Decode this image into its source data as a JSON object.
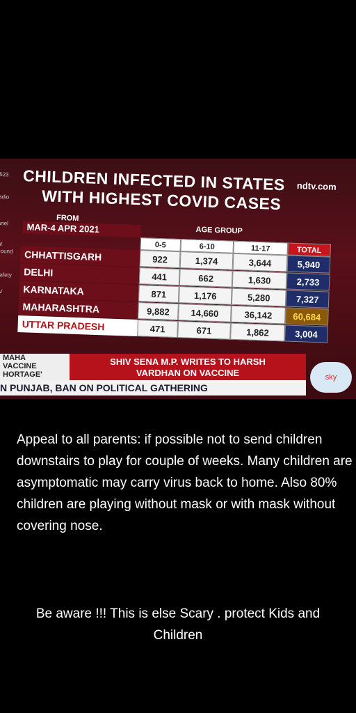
{
  "tv": {
    "channel": "ndtv.com",
    "side_labels": [
      "523",
      "adio",
      "anel",
      "W",
      "Sound",
      "l",
      "Safety",
      "TV"
    ],
    "title": [
      "CHILDREN INFECTED IN STATES",
      "WITH HIGHEST COVID CASES"
    ],
    "from_label": "FROM",
    "period": "MAR-4 APR 2021",
    "age_group_label": "AGE GROUP",
    "table": {
      "headers": [
        "0-5",
        "6-10",
        "11-17",
        "TOTAL"
      ],
      "rows": [
        [
          "CHHATTISGARH",
          "922",
          "1,374",
          "3,644",
          "5,940"
        ],
        [
          "DELHI",
          "441",
          "662",
          "1,630",
          "2,733"
        ],
        [
          "KARNATAKA",
          "871",
          "1,176",
          "5,280",
          "7,327"
        ],
        [
          "MAHARASHTRA",
          "9,882",
          "14,660",
          "36,142",
          "60,684"
        ],
        [
          "UTTAR PRADESH",
          "471",
          "671",
          "1,862",
          "3,004"
        ]
      ]
    },
    "ticker": {
      "tag": [
        "MAHA",
        "VACCINE",
        "HORTAGE'"
      ],
      "headline": [
        "SHIV SENA M.P. WRITES TO HARSH",
        "VARDHAN ON VACCINE"
      ],
      "crawl": "N PUNJAB, BAN ON POLITICAL GATHERING",
      "logo": "sky"
    }
  },
  "post": {
    "message": "Appeal to all parents: if possible not to send children downstairs to play for couple of weeks.  Many children are asymptomatic may carry virus back to home.  Also 80% children are playing without mask or with mask without covering nose.",
    "footer": "Be aware !!! This is else Scary . protect Kids and Children"
  }
}
